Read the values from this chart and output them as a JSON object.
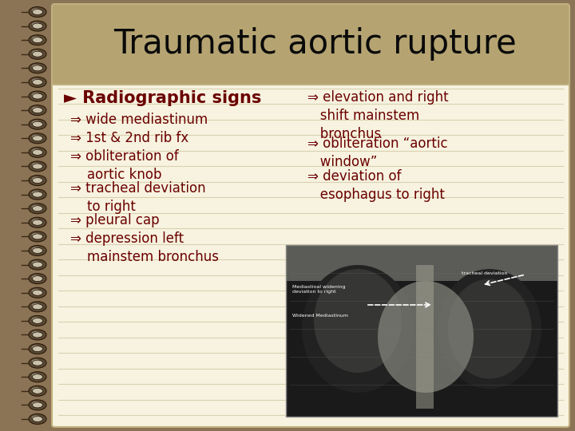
{
  "title": "Traumatic aortic rupture",
  "title_color": "#0a0a0a",
  "title_bg_color": "#b5a472",
  "slide_bg_color": "#f7f3e0",
  "border_color": "#8b7355",
  "line_color": "#d8d0b0",
  "text_color": "#6b0000",
  "heading": "► Radiographic signs",
  "left_bullets": [
    "⇒ wide mediastinum",
    "⇒ 1st & 2nd rib fx",
    "⇒ obliteration of\n    aortic knob",
    "⇒ tracheal deviation\n    to right",
    "⇒ pleural cap",
    "⇒ depression left\n    mainstem bronchus"
  ],
  "right_bullets": [
    "⇒ elevation and right\n   shift mainstem\n   bronchus",
    "⇒ obliteration “aortic\n   window”",
    "⇒ deviation of\n   esophagus to right"
  ],
  "spiral_outer_color": "#7a6a50",
  "spiral_inner_color": "#f0ece0",
  "spiral_edge_color": "#3a2a18",
  "figsize": [
    7.2,
    5.4
  ],
  "dpi": 100
}
